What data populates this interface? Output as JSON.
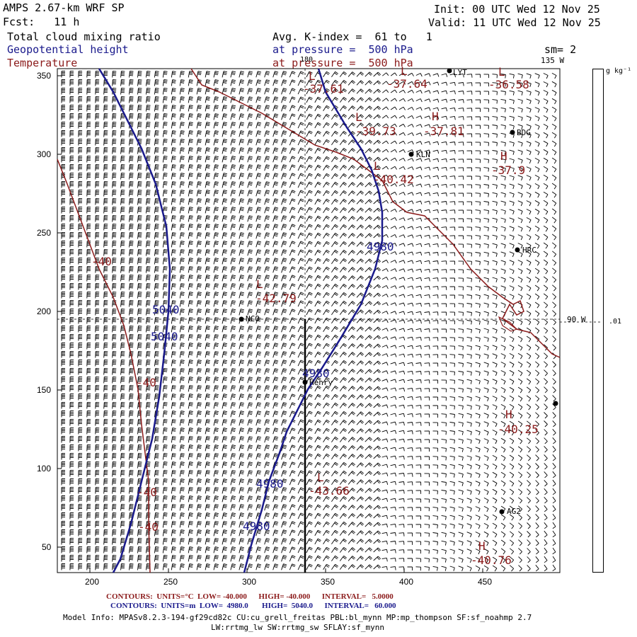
{
  "header": {
    "title": "AMPS 2.67-km WRF SP",
    "fcst": "Fcst:   11 h",
    "init": "Init: 00 UTC Wed 12 Nov 25",
    "valid": "Valid: 11 UTC Wed 12 Nov 25",
    "field1": "Total cloud mixing ratio",
    "field2": "Geopotential height",
    "field3": "Temperature",
    "avg": "Avg. K-index =  61 to   1",
    "pressure1": "at pressure =  500 hPa",
    "pressure2": "at pressure =  500 hPa",
    "sm": "sm= 2",
    "lon_135": "135 W",
    "lon_180": "180",
    "lon_90": "90 W"
  },
  "colorbar": {
    "units": "g kg⁻¹",
    "tick": ".01"
  },
  "axes": {
    "x_ticks": [
      "200",
      "250",
      "300",
      "350",
      "400",
      "450"
    ],
    "y_ticks": [
      "350",
      "300",
      "250",
      "200",
      "150",
      "100",
      "50"
    ]
  },
  "stations": [
    {
      "name": "LYT"
    },
    {
      "name": "BDG"
    },
    {
      "name": "KLN"
    },
    {
      "name": "HRC"
    },
    {
      "name": "NCO"
    },
    {
      "name": "Henry"
    },
    {
      "name": "AG2"
    },
    {
      "name": ""
    }
  ],
  "temp_labels": [
    {
      "letter": "L",
      "value": "-37.61"
    },
    {
      "letter": "L",
      "value": "-37.64"
    },
    {
      "letter": "L",
      "value": "-36.58"
    },
    {
      "letter": "L",
      "value": "-39.73"
    },
    {
      "letter": "H",
      "value": "-37.81"
    },
    {
      "letter": "H",
      "value": "-37.9"
    },
    {
      "letter": "L",
      "value": "-40.42"
    },
    {
      "letter": "L",
      "value": "-42.79"
    },
    {
      "letter": "H",
      "value": "-40.25"
    },
    {
      "letter": "L",
      "value": "-43.66"
    },
    {
      "letter": "H",
      "value": "-40.76"
    }
  ],
  "contour_labels_temp": [
    "-40",
    "-40",
    "-40",
    "-40"
  ],
  "contour_labels_height": [
    "5040",
    "5040",
    "4980",
    "4980",
    "4980",
    "4980"
  ],
  "footer": {
    "line1": "CONTOURS:  UNITS=°C  LOW= -40.000      HIGH= -40.000      INTERVAL=   5.0000",
    "line2": "CONTOURS:  UNITS=m  LOW=  4980.0       HIGH=  5040.0      INTERVAL=   60.000",
    "info1": "Model Info: MPASv8.2.3-194-gf29cd82c CU:cu_grell_freitas PBL:bl_mynn MP:mp_thompson SF:sf_noahmp 2.7",
    "info2": "LW:rrtmg_lw SW:rrtmg_sw SFLAY:sf_mynn"
  },
  "colors": {
    "temperature": "#8b1a1a",
    "height": "#1a1a8c",
    "coast": "#8b1a1a"
  }
}
